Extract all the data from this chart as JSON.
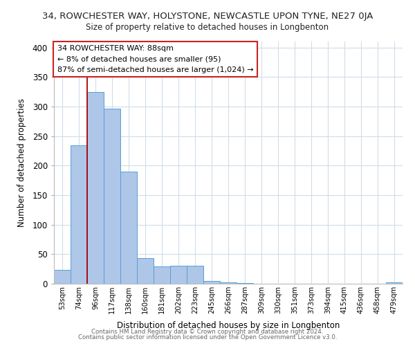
{
  "title": "34, ROWCHESTER WAY, HOLYSTONE, NEWCASTLE UPON TYNE, NE27 0JA",
  "subtitle": "Size of property relative to detached houses in Longbenton",
  "xlabel": "Distribution of detached houses by size in Longbenton",
  "ylabel": "Number of detached properties",
  "bar_labels": [
    "53sqm",
    "74sqm",
    "96sqm",
    "117sqm",
    "138sqm",
    "160sqm",
    "181sqm",
    "202sqm",
    "223sqm",
    "245sqm",
    "266sqm",
    "287sqm",
    "309sqm",
    "330sqm",
    "351sqm",
    "373sqm",
    "394sqm",
    "415sqm",
    "436sqm",
    "458sqm",
    "479sqm"
  ],
  "bar_values": [
    23,
    234,
    325,
    296,
    190,
    43,
    29,
    30,
    30,
    5,
    2,
    1,
    0,
    0,
    0,
    0,
    0,
    0,
    0,
    0,
    2
  ],
  "bar_color": "#aec6e8",
  "bar_edge_color": "#5a9fd4",
  "vline_color": "#aa0000",
  "vline_x_index": 1.5,
  "annotation_box_text": "34 ROWCHESTER WAY: 88sqm\n← 8% of detached houses are smaller (95)\n87% of semi-detached houses are larger (1,024) →",
  "ylim": [
    0,
    410
  ],
  "yticks": [
    0,
    50,
    100,
    150,
    200,
    250,
    300,
    350,
    400
  ],
  "footer_line1": "Contains HM Land Registry data © Crown copyright and database right 2024.",
  "footer_line2": "Contains public sector information licensed under the Open Government Licence v3.0.",
  "bg_color": "#ffffff",
  "grid_color": "#d0dce8"
}
